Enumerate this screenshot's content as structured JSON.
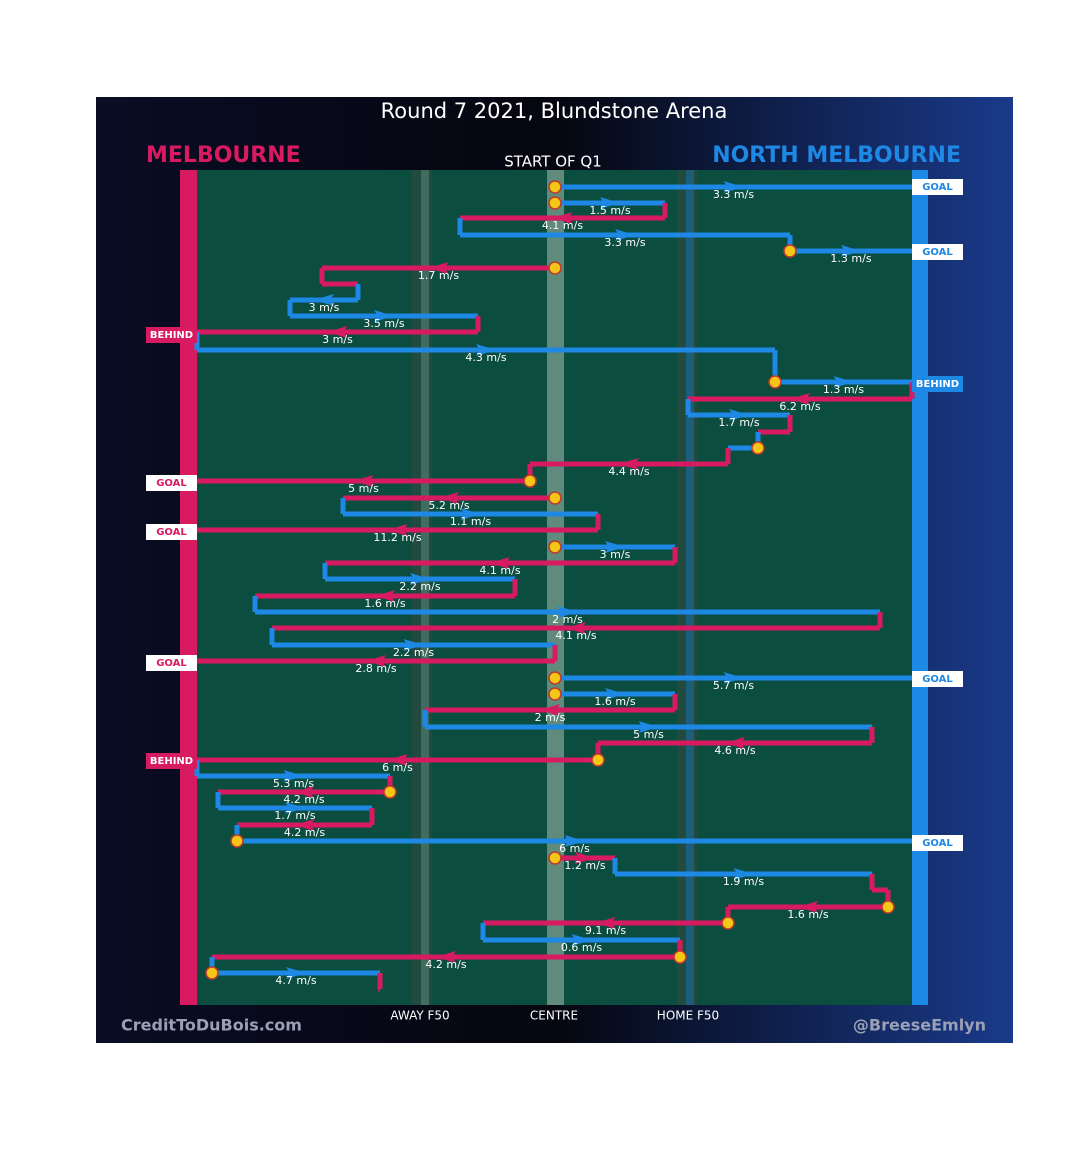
{
  "title": "Round 7 2021, Blundstone Arena",
  "teams": {
    "left": "MELBOURNE",
    "right": "NORTH MELBOURNE"
  },
  "period": "START OF Q1",
  "field_labels": [
    "AWAY F50",
    "CENTRE",
    "HOME F50"
  ],
  "credits": {
    "left": "CreditToDuBois.com",
    "right": "@BreeseEmlyn"
  },
  "speeds": [
    "3.3 m/s",
    "1.5 m/s",
    "4.1 m/s",
    "3.3 m/s",
    "1.3 m/s",
    "1.7 m/s",
    "3 m/s",
    "3.5 m/s",
    "3 m/s",
    "4.3 m/s",
    "1.3 m/s",
    "6.2 m/s",
    "1.7 m/s",
    "4.4 m/s",
    "5 m/s",
    "5.2 m/s",
    "1.1 m/s",
    "11.2 m/s",
    "3 m/s",
    "4.1 m/s",
    "2.2 m/s",
    "1.6 m/s",
    "2 m/s",
    "4.1 m/s",
    "2.2 m/s",
    "2.8 m/s",
    "5.7 m/s",
    "1.6 m/s",
    "2 m/s",
    "5 m/s",
    "4.6 m/s",
    "6 m/s",
    "5.3 m/s",
    "4.2 m/s",
    "1.7 m/s",
    "4.2 m/s",
    "6 m/s",
    "1.2 m/s",
    "1.9 m/s",
    "1.6 m/s",
    "9.1 m/s",
    "0.6 m/s",
    "4.2 m/s",
    "4.7 m/s"
  ],
  "outcomes": [
    "GOAL",
    "GOAL",
    "BEHIND",
    "BEHIND",
    "GOAL",
    "GOAL",
    "GOAL",
    "GOAL",
    "BEHIND",
    "GOAL"
  ]
}
